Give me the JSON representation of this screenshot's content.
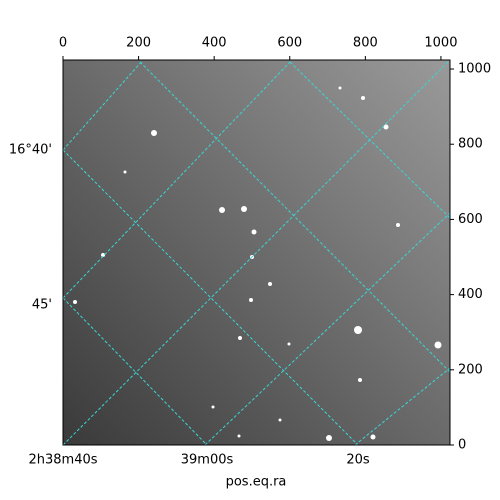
{
  "chart_data": {
    "type": "image",
    "xlabel": "pos.eq.ra",
    "xlim": [
      0,
      1024
    ],
    "ylim": [
      0,
      1024
    ],
    "xticks": [
      0,
      200,
      400,
      600,
      800,
      1000
    ],
    "yticks": [
      0,
      200,
      400,
      600,
      800,
      1000
    ],
    "ra_ticks": [
      "2h38m40s",
      "39m00s",
      "20s"
    ],
    "dec_ticks": [
      "16°40'",
      "45'"
    ],
    "grid_color": "#3ad6d6"
  }
}
